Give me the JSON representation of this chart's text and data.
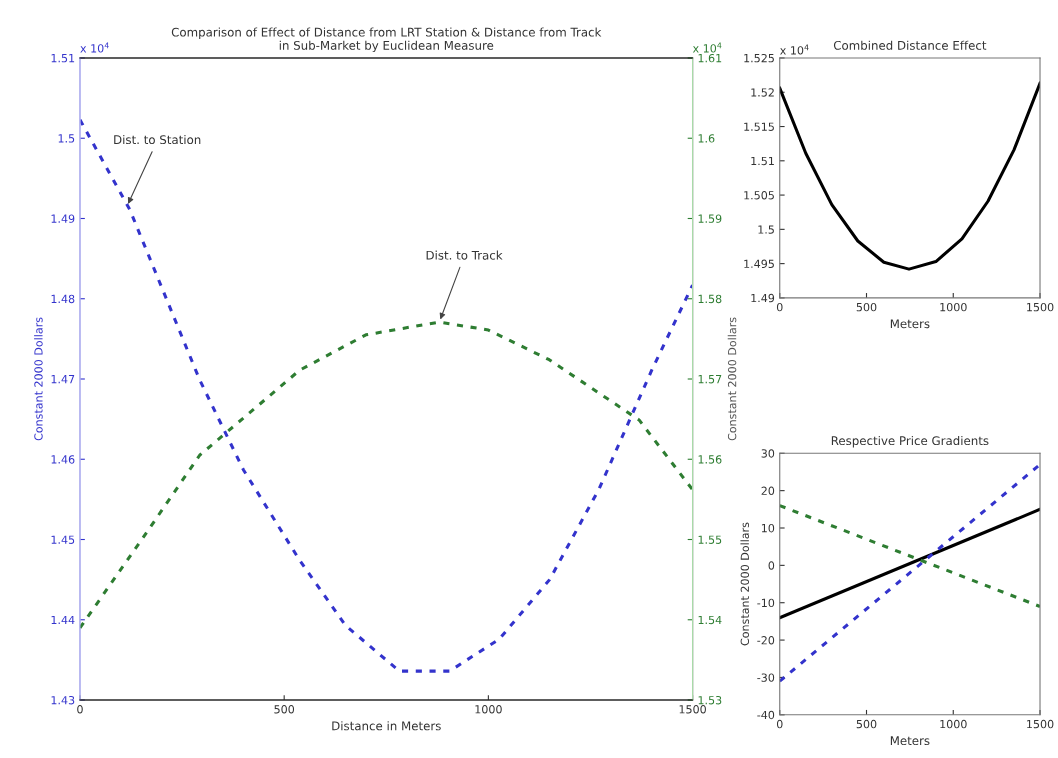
{
  "chart_data": [
    {
      "type": "line",
      "title": "Comparison of Effect of Distance from LRT Station & Distance from Track\nin Sub-Market by Euclidean Measure",
      "xlabel": "Distance in Meters",
      "ylabel": "Constant 2000 Dollars",
      "y2label": "Constant 2000 Dollars",
      "line_style": "dashed",
      "marker": "none",
      "grid": false,
      "legend": false,
      "xlim": [
        0,
        1500
      ],
      "xticks": [
        0,
        500,
        1000,
        1500
      ],
      "ylim": [
        1.43,
        1.51
      ],
      "yticks": [
        1.43,
        1.44,
        1.45,
        1.46,
        1.47,
        1.48,
        1.49,
        1.5,
        1.51
      ],
      "y2lim": [
        1.53,
        1.61
      ],
      "y2ticks": [
        1.53,
        1.54,
        1.55,
        1.56,
        1.57,
        1.58,
        1.59,
        1.6,
        1.61
      ],
      "series": [
        {
          "color": "#3333cc",
          "axis": "y",
          "x": [
            0,
            122,
            293,
            400,
            538,
            650,
            782,
            905,
            1027,
            1150,
            1271,
            1400,
            1500
          ],
          "values": [
            1.5023,
            1.4911,
            1.4699,
            1.4587,
            1.4474,
            1.4393,
            1.4336,
            1.4336,
            1.4376,
            1.445,
            1.4563,
            1.4711,
            1.4817
          ]
        },
        {
          "color": "#2e7d32",
          "axis": "y2",
          "x": [
            0,
            150,
            293,
            538,
            700,
            880,
            1000,
            1149,
            1369,
            1500
          ],
          "values": [
            1.539,
            1.5499,
            1.5605,
            1.5711,
            1.5755,
            1.5771,
            1.5761,
            1.5724,
            1.5649,
            1.5562
          ]
        }
      ],
      "annotations": [
        "x 10$^{4}$",
        "x 10$^{4}$",
        {
          "text": "Dist. to Station",
          "x": 115,
          "y": 1.4915
        },
        {
          "text": "Dist. to Track",
          "x": 880,
          "y": 1.4771
        }
      ]
    },
    {
      "type": "line",
      "title": "Combined Distance Effect",
      "xlabel": "Meters",
      "line_style": "solid",
      "marker": "none",
      "grid": false,
      "legend": false,
      "xlim": [
        0,
        1500
      ],
      "xticks": [
        0,
        500,
        1000,
        1500
      ],
      "ylim": [
        1.49,
        1.525
      ],
      "yticks": [
        1.49,
        1.495,
        1.5,
        1.505,
        1.51,
        1.515,
        1.52,
        1.525
      ],
      "series": [
        {
          "color": "#000000",
          "x": [
            0,
            150,
            300,
            450,
            600,
            745,
            900,
            1050,
            1200,
            1350,
            1500
          ],
          "values": [
            1.5206,
            1.5111,
            1.5036,
            1.4983,
            1.4952,
            1.4942,
            1.4953,
            1.4986,
            1.5041,
            1.5116,
            1.5213
          ]
        }
      ],
      "annotations": [
        "x 10$^{4}$"
      ]
    },
    {
      "type": "line",
      "title": "Respective Price Gradients",
      "xlabel": "Meters",
      "ylabel": "Constant 2000 Dollars",
      "marker": "none",
      "grid": false,
      "legend": false,
      "xlim": [
        0,
        1500
      ],
      "xticks": [
        0,
        500,
        1000,
        1500
      ],
      "ylim": [
        -40,
        30
      ],
      "yticks": [
        -40,
        -30,
        -20,
        -10,
        0,
        10,
        20,
        30
      ],
      "series": [
        {
          "color": "#000000",
          "line_style": "solid",
          "x": [
            0,
            1500
          ],
          "values": [
            -14,
            15
          ]
        },
        {
          "color": "#3333cc",
          "line_style": "dashed",
          "x": [
            0,
            1500
          ],
          "values": [
            -31,
            27
          ]
        },
        {
          "color": "#2e7d32",
          "line_style": "dashed",
          "x": [
            0,
            1500
          ],
          "values": [
            16,
            -11
          ]
        }
      ]
    }
  ]
}
